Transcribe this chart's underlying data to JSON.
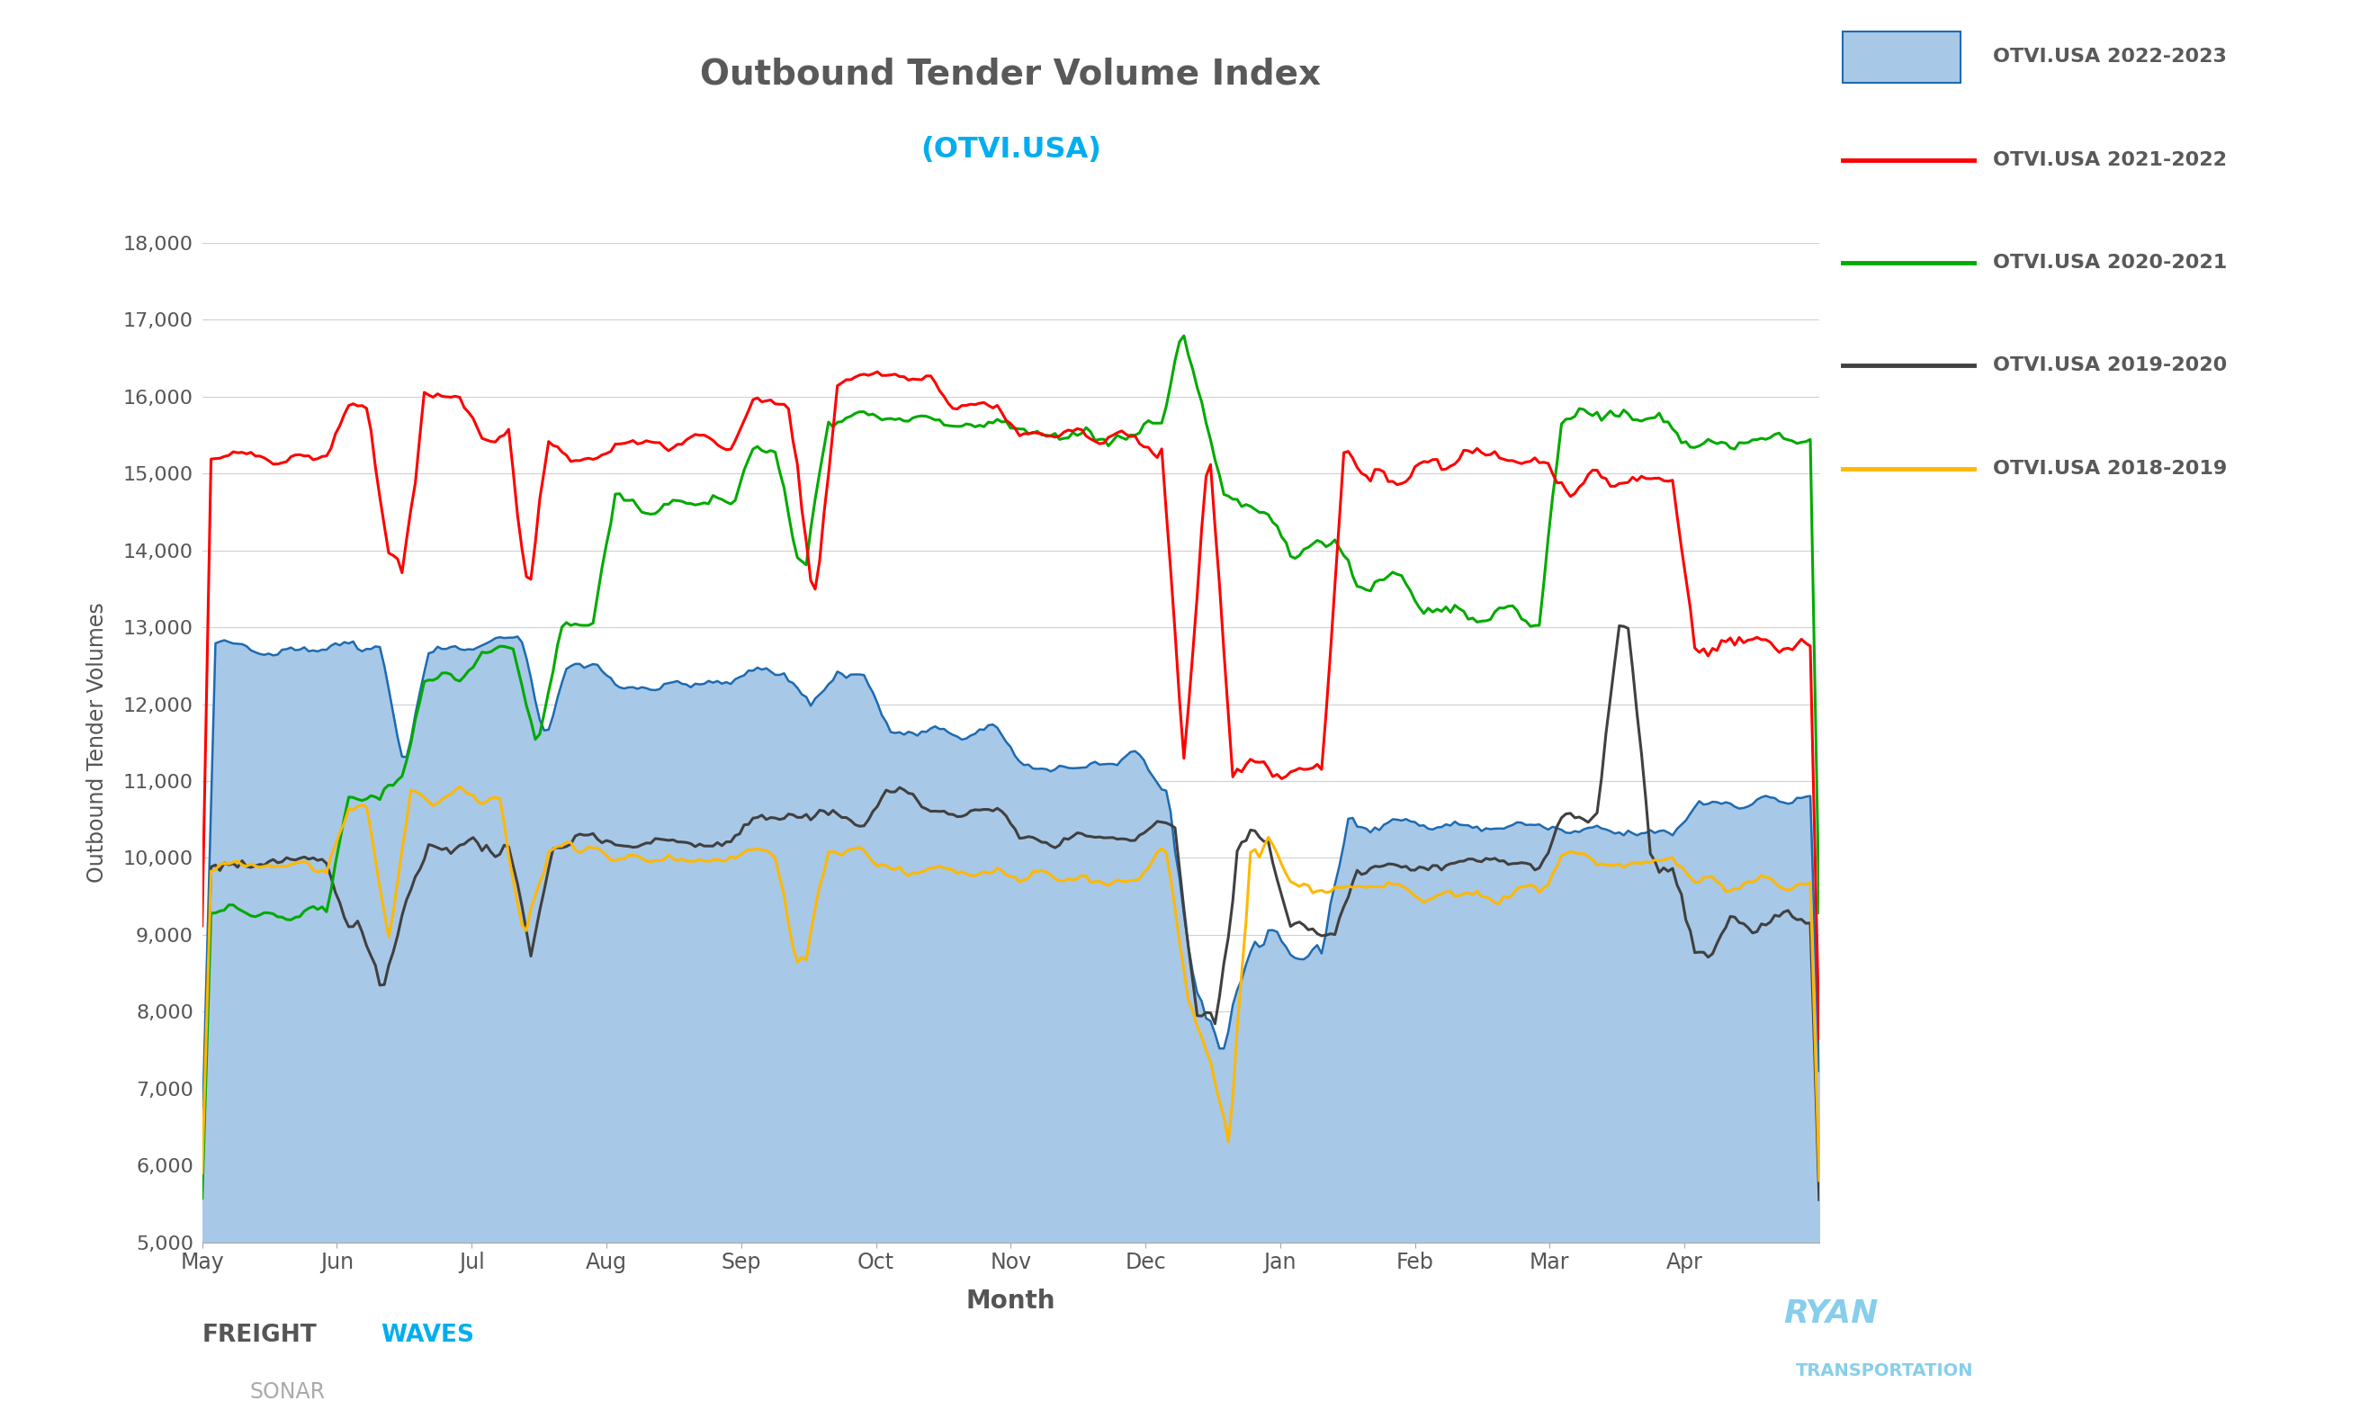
{
  "title": "Outbound Tender Volume Index",
  "subtitle": "(OTVI.USA)",
  "title_color": "#595959",
  "subtitle_color": "#00AEEF",
  "xlabel": "Month",
  "ylabel": "Outbound Tender Volumes",
  "ylim": [
    5000,
    18000
  ],
  "yticks": [
    5000,
    6000,
    7000,
    8000,
    9000,
    10000,
    11000,
    12000,
    13000,
    14000,
    15000,
    16000,
    17000,
    18000
  ],
  "background_color": "#ffffff",
  "plot_bg_color": "#ffffff",
  "grid_color": "#d0d0d0",
  "month_labels": [
    "May",
    "Jun",
    "Jul",
    "Aug",
    "Sep",
    "Oct",
    "Nov",
    "Dec",
    "Jan",
    "Feb",
    "Mar",
    "Apr"
  ],
  "legend_labels": [
    "OTVI.USA 2022-2023",
    "OTVI.USA 2021-2022",
    "OTVI.USA 2020-2021",
    "OTVI.USA 2019-2020",
    "OTVI.USA 2018-2019"
  ],
  "colors": {
    "2022_2023_fill": "#A8C8E8",
    "2022_2023_line": "#1E6BB0",
    "2021_2022": "#FF0000",
    "2020_2021": "#00AA00",
    "2019_2020": "#404040",
    "2018_2019": "#FFB800"
  },
  "n_points": 365
}
